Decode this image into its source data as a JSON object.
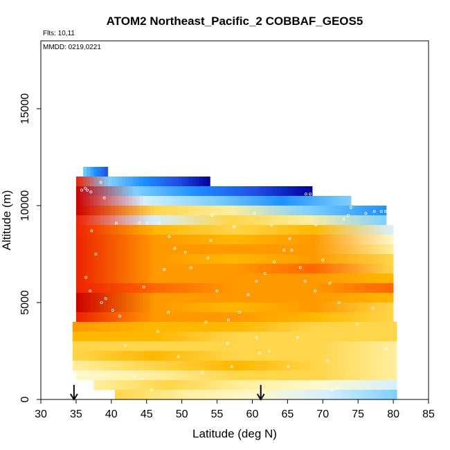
{
  "chart_data": {
    "type": "heatmap",
    "title": "ATOM2 Northeast_Pacific_2 COBBAF_GEOS5",
    "annotations": [
      "Flts: 10,11",
      "MMDD: 0219,0221"
    ],
    "xlabel": "Latitude (deg N)",
    "ylabel": "Altitude (m)",
    "xlim": [
      30,
      85
    ],
    "ylim": [
      0,
      18500
    ],
    "x_ticks": [
      "30",
      "35",
      "40",
      "45",
      "50",
      "55",
      "60",
      "65",
      "70",
      "75",
      "80",
      "85"
    ],
    "y_ticks": [
      "0",
      "5000",
      "10000",
      "15000"
    ],
    "markers": [
      {
        "symbol": "down-arrow",
        "latitude": 34.7
      },
      {
        "symbol": "down-arrow",
        "latitude": 61.2
      }
    ],
    "colors": {
      "dark_red": "#cc0000",
      "red": "#ee2200",
      "orange_red": "#ff6600",
      "orange": "#ff9900",
      "light_orange": "#ffb700",
      "yellow": "#ffd54a",
      "pale_yellow": "#ffef9e",
      "cream": "#fff8cc",
      "pale_blue": "#d6f0ff",
      "light_blue": "#7fd0ff",
      "blue": "#1e90ff",
      "medium_blue": "#2050e6",
      "dark_blue": "#0000a0"
    },
    "layers": [
      {
        "lat_start": 36,
        "lat_end": 39.5,
        "alt_start": 11500,
        "alt_end": 12000,
        "palette": [
          "light_blue",
          "blue",
          "medium_blue"
        ]
      },
      {
        "lat_start": 35,
        "lat_end": 54,
        "alt_start": 11000,
        "alt_end": 11500,
        "palette": [
          "red",
          "light_blue",
          "blue",
          "medium_blue",
          "dark_blue"
        ]
      },
      {
        "lat_start": 35,
        "lat_end": 68.5,
        "alt_start": 10500,
        "alt_end": 11000,
        "palette": [
          "dark_red",
          "light_blue",
          "blue",
          "medium_blue",
          "dark_blue"
        ]
      },
      {
        "lat_start": 35,
        "lat_end": 74,
        "alt_start": 10000,
        "alt_end": 10500,
        "palette": [
          "dark_red",
          "pale_blue",
          "light_blue",
          "blue",
          "light_blue"
        ]
      },
      {
        "lat_start": 35,
        "lat_end": 79,
        "alt_start": 9500,
        "alt_end": 10000,
        "palette": [
          "dark_red",
          "yellow",
          "pale_yellow",
          "light_blue",
          "blue"
        ]
      },
      {
        "lat_start": 35,
        "lat_end": 79,
        "alt_start": 9000,
        "alt_end": 9500,
        "palette": [
          "red",
          "pale_blue",
          "yellow",
          "pale_yellow",
          "light_blue"
        ]
      },
      {
        "lat_start": 35,
        "lat_end": 80,
        "alt_start": 8500,
        "alt_end": 9000,
        "palette": [
          "red",
          "light_orange",
          "yellow",
          "light_orange",
          "pale_blue"
        ]
      },
      {
        "lat_start": 35,
        "lat_end": 80,
        "alt_start": 8000,
        "alt_end": 8500,
        "palette": [
          "red",
          "orange",
          "light_orange",
          "orange",
          "cream"
        ]
      },
      {
        "lat_start": 35,
        "lat_end": 80,
        "alt_start": 7500,
        "alt_end": 8000,
        "palette": [
          "red",
          "orange",
          "orange",
          "orange",
          "pale_yellow"
        ]
      },
      {
        "lat_start": 35,
        "lat_end": 80,
        "alt_start": 7000,
        "alt_end": 7500,
        "palette": [
          "red",
          "orange",
          "light_orange",
          "orange",
          "yellow"
        ]
      },
      {
        "lat_start": 35,
        "lat_end": 80,
        "alt_start": 6500,
        "alt_end": 7000,
        "palette": [
          "red",
          "orange",
          "orange",
          "orange_red",
          "yellow"
        ]
      },
      {
        "lat_start": 35,
        "lat_end": 80,
        "alt_start": 6000,
        "alt_end": 6500,
        "palette": [
          "red",
          "orange",
          "orange",
          "orange",
          "light_orange"
        ]
      },
      {
        "lat_start": 35,
        "lat_end": 80,
        "alt_start": 5500,
        "alt_end": 6000,
        "palette": [
          "red",
          "orange_red",
          "orange",
          "orange",
          "orange_red"
        ]
      },
      {
        "lat_start": 35,
        "lat_end": 80,
        "alt_start": 5000,
        "alt_end": 5500,
        "palette": [
          "dark_red",
          "orange",
          "orange",
          "orange",
          "light_orange"
        ]
      },
      {
        "lat_start": 35,
        "lat_end": 80,
        "alt_start": 4500,
        "alt_end": 5000,
        "palette": [
          "dark_red",
          "orange",
          "light_orange",
          "orange",
          "yellow"
        ]
      },
      {
        "lat_start": 35,
        "lat_end": 80,
        "alt_start": 4000,
        "alt_end": 4500,
        "palette": [
          "red",
          "orange",
          "orange",
          "light_orange",
          "yellow"
        ]
      },
      {
        "lat_start": 34.5,
        "lat_end": 80.5,
        "alt_start": 3500,
        "alt_end": 4000,
        "palette": [
          "orange",
          "light_orange",
          "light_orange",
          "yellow",
          "yellow"
        ]
      },
      {
        "lat_start": 34.5,
        "lat_end": 80.5,
        "alt_start": 3000,
        "alt_end": 3500,
        "palette": [
          "light_orange",
          "light_orange",
          "yellow",
          "yellow",
          "yellow"
        ]
      },
      {
        "lat_start": 34.5,
        "lat_end": 80.5,
        "alt_start": 2500,
        "alt_end": 3000,
        "palette": [
          "yellow",
          "yellow",
          "yellow",
          "yellow",
          "pale_yellow"
        ]
      },
      {
        "lat_start": 34.5,
        "lat_end": 80.5,
        "alt_start": 2000,
        "alt_end": 2500,
        "palette": [
          "yellow",
          "light_orange",
          "yellow",
          "yellow",
          "pale_yellow"
        ]
      },
      {
        "lat_start": 34.5,
        "lat_end": 80.5,
        "alt_start": 1500,
        "alt_end": 2000,
        "palette": [
          "pale_yellow",
          "yellow",
          "light_orange",
          "yellow",
          "pale_yellow"
        ]
      },
      {
        "lat_start": 35,
        "lat_end": 80.5,
        "alt_start": 1000,
        "alt_end": 1500,
        "palette": [
          "cream",
          "pale_yellow",
          "yellow",
          "yellow",
          "pale_yellow"
        ]
      },
      {
        "lat_start": 37.5,
        "lat_end": 80.5,
        "alt_start": 500,
        "alt_end": 1000,
        "palette": [
          "pale_yellow",
          "yellow",
          "pale_yellow",
          "cream",
          "pale_blue"
        ]
      },
      {
        "lat_start": 40.5,
        "lat_end": 80.5,
        "alt_start": 0,
        "alt_end": 500,
        "palette": [
          "yellow",
          "pale_yellow",
          "cream",
          "pale_blue",
          "light_blue"
        ]
      }
    ],
    "flight_points": [
      [
        35.8,
        10800
      ],
      [
        36.3,
        10900
      ],
      [
        36.6,
        10800
      ],
      [
        37.1,
        10700
      ],
      [
        38.5,
        11200
      ],
      [
        39.0,
        10400
      ],
      [
        37.2,
        8700
      ],
      [
        37.8,
        7500
      ],
      [
        36.4,
        6300
      ],
      [
        37.0,
        5600
      ],
      [
        38.6,
        5000
      ],
      [
        40.2,
        4600
      ],
      [
        40.7,
        9100
      ],
      [
        44.0,
        9100
      ],
      [
        45.1,
        9100
      ],
      [
        46.8,
        9100
      ],
      [
        48.2,
        8400
      ],
      [
        49.0,
        7800
      ],
      [
        51.3,
        6800
      ],
      [
        53.7,
        7300
      ],
      [
        55.0,
        5600
      ],
      [
        56.6,
        4100
      ],
      [
        58.2,
        4500
      ],
      [
        59.4,
        5400
      ],
      [
        60.6,
        6100
      ],
      [
        61.8,
        6500
      ],
      [
        63.1,
        7100
      ],
      [
        64.5,
        7700
      ],
      [
        65.6,
        7700
      ],
      [
        66.8,
        6800
      ],
      [
        67.5,
        6100
      ],
      [
        68.9,
        5600
      ],
      [
        70.0,
        7200
      ],
      [
        71.0,
        6000
      ],
      [
        72.3,
        5000
      ],
      [
        73.0,
        9300
      ],
      [
        73.6,
        9500
      ],
      [
        74.0,
        9900
      ],
      [
        76.1,
        9600
      ],
      [
        77.3,
        9700
      ],
      [
        78.3,
        9700
      ],
      [
        78.9,
        9700
      ],
      [
        67.6,
        10600
      ],
      [
        68.2,
        10600
      ],
      [
        69.0,
        9000
      ],
      [
        70.7,
        2000
      ],
      [
        71.3,
        500
      ],
      [
        72.0,
        600
      ],
      [
        62.4,
        2500
      ],
      [
        60.6,
        3200
      ],
      [
        57.1,
        1700
      ],
      [
        52.9,
        1400
      ],
      [
        49.5,
        2200
      ],
      [
        46.6,
        3500
      ],
      [
        43.2,
        1200
      ],
      [
        41.2,
        4300
      ],
      [
        39.2,
        5200
      ],
      [
        44.6,
        5800
      ],
      [
        47.5,
        6700
      ],
      [
        50.5,
        7600
      ],
      [
        54.1,
        8200
      ],
      [
        57.4,
        8900
      ],
      [
        60.3,
        9600
      ],
      [
        62.7,
        9000
      ],
      [
        65.3,
        8300
      ],
      [
        54.3,
        9500
      ],
      [
        48.1,
        4500
      ],
      [
        53.4,
        4000
      ],
      [
        56.5,
        2900
      ],
      [
        61.0,
        2400
      ],
      [
        66.4,
        3200
      ],
      [
        74.9,
        3900
      ],
      [
        77.1,
        4700
      ],
      [
        79.0,
        2600
      ],
      [
        65.1,
        1700
      ],
      [
        42.0,
        2800
      ],
      [
        45.7,
        500
      ]
    ]
  }
}
